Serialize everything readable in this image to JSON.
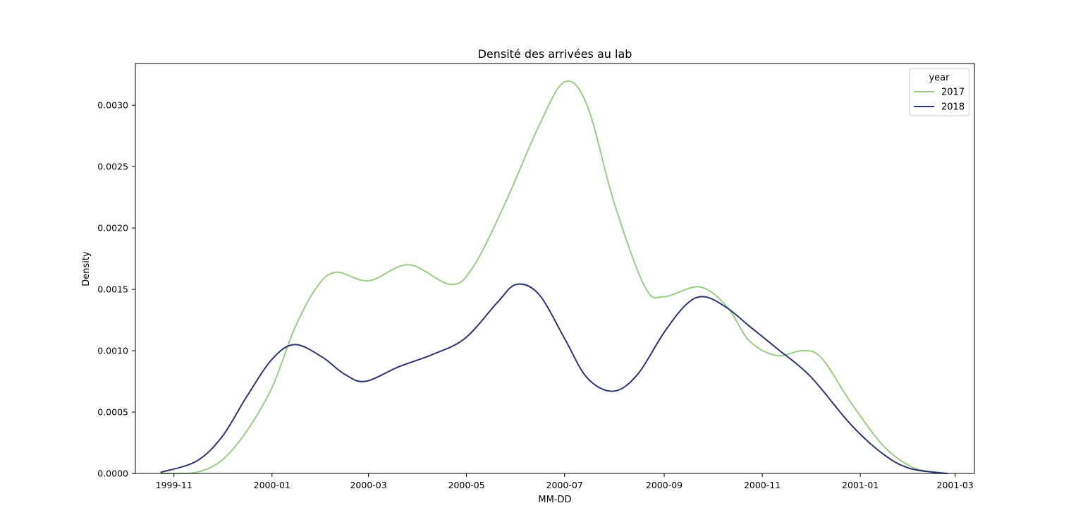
{
  "chart_data": {
    "type": "line",
    "title": "Densité des arrivées au lab",
    "xlabel": "MM-DD",
    "ylabel": "Density",
    "x_ticks": [
      "1999-11",
      "2000-01",
      "2000-03",
      "2000-05",
      "2000-07",
      "2000-09",
      "2000-11",
      "2001-01",
      "2001-03"
    ],
    "y_ticks": [
      "0.0000",
      "0.0005",
      "0.0010",
      "0.0015",
      "0.0020",
      "0.0025",
      "0.0030"
    ],
    "xlim": [
      "1999-10-08",
      "2001-03-13"
    ],
    "ylim": [
      0,
      0.00334
    ],
    "grid": false,
    "legend": {
      "title": "year",
      "position": "top-right"
    },
    "series": [
      {
        "name": "2017",
        "color": "#9ccb86",
        "points": [
          [
            "1999-10-24",
            0.0
          ],
          [
            "1999-11-15",
            1e-05
          ],
          [
            "1999-12-01",
            0.00011
          ],
          [
            "1999-12-16",
            0.00034
          ],
          [
            "2000-01-01",
            0.0007
          ],
          [
            "2000-01-15",
            0.00118
          ],
          [
            "2000-01-29",
            0.00152
          ],
          [
            "2000-02-10",
            0.00164
          ],
          [
            "2000-03-01",
            0.00157
          ],
          [
            "2000-03-26",
            0.0017
          ],
          [
            "2000-04-21",
            0.00154
          ],
          [
            "2000-05-05",
            0.00168
          ],
          [
            "2000-05-25",
            0.0022
          ],
          [
            "2000-06-15",
            0.00283
          ],
          [
            "2000-07-01",
            0.00319
          ],
          [
            "2000-07-15",
            0.003
          ],
          [
            "2000-08-01",
            0.0022
          ],
          [
            "2000-08-20",
            0.00152
          ],
          [
            "2000-09-01",
            0.00144
          ],
          [
            "2000-09-23",
            0.00152
          ],
          [
            "2000-10-10",
            0.00136
          ],
          [
            "2000-10-24",
            0.00108
          ],
          [
            "2000-11-10",
            0.00096
          ],
          [
            "2000-11-26",
            0.001
          ],
          [
            "2000-12-08",
            0.00094
          ],
          [
            "2000-12-26",
            0.00058
          ],
          [
            "2001-01-15",
            0.00023
          ],
          [
            "2001-02-01",
            6e-05
          ],
          [
            "2001-02-15",
            1e-05
          ],
          [
            "2001-02-24",
            0.0
          ]
        ]
      },
      {
        "name": "2018",
        "color": "#2c3572",
        "points": [
          [
            "1999-10-24",
            1e-05
          ],
          [
            "1999-11-15",
            0.0001
          ],
          [
            "1999-12-01",
            0.0003
          ],
          [
            "1999-12-16",
            0.00062
          ],
          [
            "2000-01-01",
            0.00093
          ],
          [
            "2000-01-15",
            0.00105
          ],
          [
            "2000-02-01",
            0.00095
          ],
          [
            "2000-02-15",
            0.00081
          ],
          [
            "2000-02-28",
            0.00075
          ],
          [
            "2000-03-20",
            0.00087
          ],
          [
            "2000-04-10",
            0.00097
          ],
          [
            "2000-04-30",
            0.0011
          ],
          [
            "2000-05-20",
            0.00139
          ],
          [
            "2000-06-01",
            0.00154
          ],
          [
            "2000-06-15",
            0.00146
          ],
          [
            "2000-07-01",
            0.0011
          ],
          [
            "2000-07-15",
            0.00078
          ],
          [
            "2000-07-31",
            0.00067
          ],
          [
            "2000-08-15",
            0.0008
          ],
          [
            "2000-09-01",
            0.00115
          ],
          [
            "2000-09-15",
            0.00138
          ],
          [
            "2000-09-26",
            0.00144
          ],
          [
            "2000-10-10",
            0.00135
          ],
          [
            "2000-10-24",
            0.0012
          ],
          [
            "2000-11-10",
            0.00102
          ],
          [
            "2000-12-01",
            0.00079
          ],
          [
            "2000-12-26",
            0.0004
          ],
          [
            "2001-01-15",
            0.00016
          ],
          [
            "2001-02-01",
            4e-05
          ],
          [
            "2001-02-24",
            0.0
          ]
        ]
      }
    ]
  }
}
